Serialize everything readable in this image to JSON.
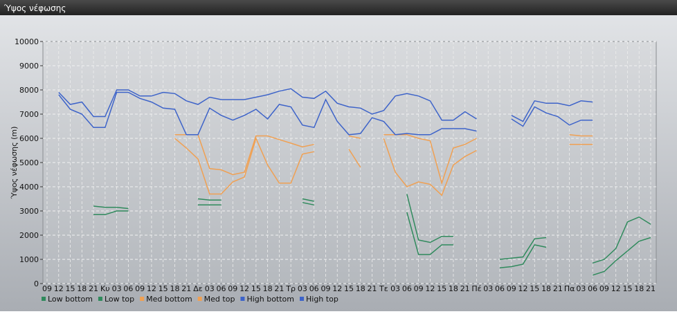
{
  "window_title": "Ύψος νέφωσης",
  "chart_data": {
    "type": "line",
    "ylabel": "Ύψος νέφωσης (m)",
    "categories": [
      "09",
      "12",
      "15",
      "18",
      "21",
      "Κυ",
      "03",
      "06",
      "09",
      "12",
      "15",
      "18",
      "21",
      "Δε",
      "03",
      "06",
      "09",
      "12",
      "15",
      "18",
      "21",
      "Τρ",
      "03",
      "06",
      "09",
      "12",
      "15",
      "18",
      "21",
      "Τε",
      "03",
      "06",
      "09",
      "12",
      "15",
      "18",
      "21",
      "Πέ",
      "03",
      "06",
      "09",
      "12",
      "15",
      "18",
      "21",
      "Πα",
      "03",
      "06",
      "09",
      "12",
      "15",
      "18",
      "21"
    ],
    "ylim": [
      0,
      10000
    ],
    "yticks": [
      0,
      1000,
      2000,
      3000,
      4000,
      5000,
      6000,
      7000,
      8000,
      9000,
      10000
    ],
    "grid": true,
    "legend": "bottom",
    "series": [
      {
        "name": "Low bottom",
        "color": "#2f8a5c",
        "values": [
          null,
          null,
          null,
          null,
          2850,
          2850,
          3000,
          3000,
          null,
          null,
          null,
          null,
          null,
          3250,
          3250,
          3250,
          null,
          null,
          null,
          null,
          null,
          null,
          3350,
          3250,
          null,
          null,
          null,
          null,
          null,
          null,
          null,
          2950,
          1200,
          1200,
          1600,
          1600,
          null,
          null,
          null,
          650,
          700,
          800,
          1600,
          1500,
          null,
          null,
          null,
          350,
          500,
          950,
          1350,
          1750,
          1900
        ]
      },
      {
        "name": "Low top",
        "color": "#2f8a5c",
        "values": [
          null,
          null,
          null,
          null,
          3200,
          3150,
          3150,
          3100,
          null,
          null,
          null,
          null,
          null,
          3500,
          3450,
          3450,
          null,
          null,
          null,
          null,
          null,
          null,
          3500,
          3400,
          null,
          null,
          null,
          null,
          null,
          null,
          null,
          3700,
          1800,
          1700,
          1950,
          1950,
          null,
          null,
          null,
          1000,
          1050,
          1100,
          1850,
          1900,
          null,
          null,
          null,
          850,
          1000,
          1450,
          2550,
          2750,
          2450
        ]
      },
      {
        "name": "Med bottom",
        "color": "#f0a052",
        "values": [
          null,
          null,
          null,
          null,
          null,
          null,
          null,
          null,
          null,
          null,
          null,
          6000,
          5600,
          5150,
          3700,
          3700,
          4200,
          4400,
          6000,
          4900,
          4150,
          4150,
          5350,
          5450,
          null,
          null,
          5550,
          4800,
          null,
          6000,
          4600,
          4000,
          4200,
          4100,
          3650,
          4900,
          5250,
          5500,
          null,
          null,
          null,
          null,
          null,
          null,
          null,
          5750,
          5750,
          5750,
          null,
          null,
          null,
          null,
          null
        ]
      },
      {
        "name": "Med top",
        "color": "#f0a052",
        "values": [
          null,
          null,
          null,
          null,
          null,
          null,
          null,
          null,
          null,
          null,
          null,
          6150,
          6150,
          6150,
          4750,
          4700,
          4500,
          4600,
          6100,
          6100,
          5950,
          5800,
          5650,
          5750,
          null,
          null,
          6100,
          6000,
          null,
          6150,
          6150,
          6150,
          6000,
          5900,
          4150,
          5600,
          5750,
          6000,
          null,
          null,
          null,
          null,
          null,
          null,
          null,
          6150,
          6100,
          6100,
          null,
          null,
          null,
          null,
          null
        ]
      },
      {
        "name": "High bottom",
        "color": "#3d63c9",
        "values": [
          null,
          7800,
          7200,
          7000,
          6450,
          6450,
          7900,
          7900,
          7650,
          7500,
          7250,
          7200,
          6150,
          6150,
          7250,
          6950,
          6750,
          6950,
          7200,
          6800,
          7400,
          7300,
          6550,
          6450,
          7600,
          6700,
          6150,
          6200,
          6850,
          6700,
          6150,
          6200,
          6150,
          6150,
          6400,
          6400,
          6400,
          6300,
          null,
          null,
          6800,
          6500,
          7300,
          7050,
          6900,
          6550,
          6750,
          6750,
          null,
          null,
          null,
          null,
          null
        ]
      },
      {
        "name": "High top",
        "color": "#3d63c9",
        "values": [
          null,
          7900,
          7400,
          7500,
          6900,
          6900,
          8000,
          8000,
          7750,
          7750,
          7900,
          7850,
          7550,
          7400,
          7700,
          7600,
          7600,
          7600,
          7700,
          7800,
          7950,
          8050,
          7700,
          7650,
          7950,
          7450,
          7300,
          7250,
          7000,
          7150,
          7750,
          7850,
          7750,
          7550,
          6750,
          6750,
          7100,
          6800,
          null,
          null,
          6950,
          6700,
          7550,
          7450,
          7450,
          7350,
          7550,
          7500,
          null,
          null,
          null,
          null,
          null
        ]
      }
    ]
  }
}
